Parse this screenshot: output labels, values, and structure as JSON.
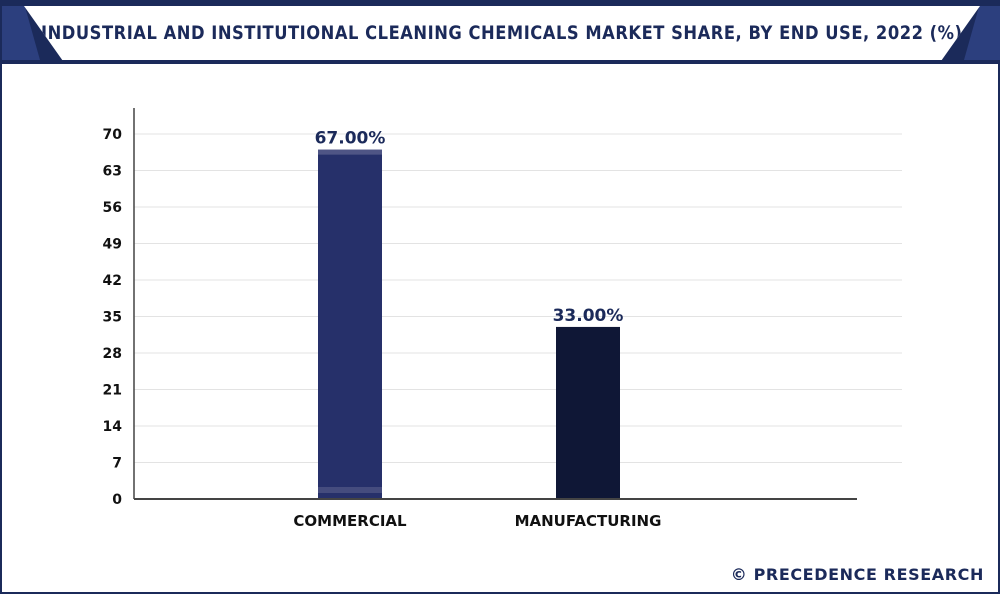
{
  "header": {
    "title": "INDUSTRIAL AND INSTITUTIONAL CLEANING CHEMICALS MARKET SHARE, BY END USE, 2022 (%)"
  },
  "footer": {
    "credit": "© PRECEDENCE RESEARCH"
  },
  "colors": {
    "frame": "#1b2a5a",
    "corner": "#2c3f7e",
    "bar_commercial": "#26306a",
    "bar_manufacturing": "#0f1736",
    "grid": "#e3e3e3",
    "axis": "#444444"
  },
  "chart_data": {
    "type": "bar",
    "title": "INDUSTRIAL AND INSTITUTIONAL CLEANING CHEMICALS MARKET SHARE, BY END USE, 2022 (%)",
    "categories": [
      "COMMERCIAL",
      "MANUFACTURING"
    ],
    "values": [
      67.0,
      33.0
    ],
    "data_labels": [
      "67.00%",
      "33.00%"
    ],
    "yticks": [
      "0",
      "7",
      "14",
      "21",
      "28",
      "35",
      "42",
      "49",
      "56",
      "63",
      "70"
    ],
    "ylim": [
      0,
      70
    ],
    "xlabel": "",
    "ylabel": "",
    "grid": true,
    "legend": "none"
  }
}
